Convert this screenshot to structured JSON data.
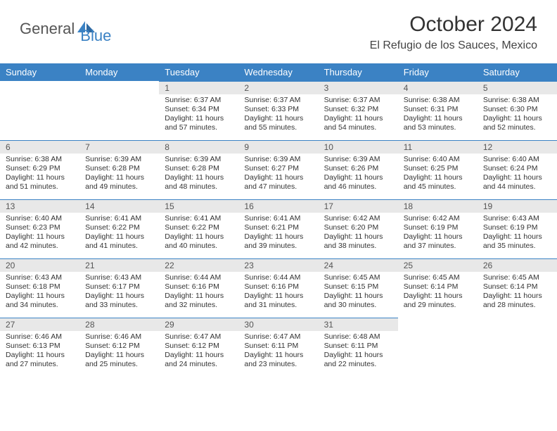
{
  "brand": {
    "general": "General",
    "blue": "Blue"
  },
  "title": "October 2024",
  "location": "El Refugio de los Sauces, Mexico",
  "colors": {
    "header_bg": "#3b82c4",
    "header_text": "#ffffff",
    "daynum_bg": "#e8e8e8",
    "daynum_border": "#3b82c4",
    "body_text": "#333333"
  },
  "weekdays": [
    "Sunday",
    "Monday",
    "Tuesday",
    "Wednesday",
    "Thursday",
    "Friday",
    "Saturday"
  ],
  "weeks": [
    [
      null,
      null,
      {
        "n": "1",
        "sr": "Sunrise: 6:37 AM",
        "ss": "Sunset: 6:34 PM",
        "d1": "Daylight: 11 hours",
        "d2": "and 57 minutes."
      },
      {
        "n": "2",
        "sr": "Sunrise: 6:37 AM",
        "ss": "Sunset: 6:33 PM",
        "d1": "Daylight: 11 hours",
        "d2": "and 55 minutes."
      },
      {
        "n": "3",
        "sr": "Sunrise: 6:37 AM",
        "ss": "Sunset: 6:32 PM",
        "d1": "Daylight: 11 hours",
        "d2": "and 54 minutes."
      },
      {
        "n": "4",
        "sr": "Sunrise: 6:38 AM",
        "ss": "Sunset: 6:31 PM",
        "d1": "Daylight: 11 hours",
        "d2": "and 53 minutes."
      },
      {
        "n": "5",
        "sr": "Sunrise: 6:38 AM",
        "ss": "Sunset: 6:30 PM",
        "d1": "Daylight: 11 hours",
        "d2": "and 52 minutes."
      }
    ],
    [
      {
        "n": "6",
        "sr": "Sunrise: 6:38 AM",
        "ss": "Sunset: 6:29 PM",
        "d1": "Daylight: 11 hours",
        "d2": "and 51 minutes."
      },
      {
        "n": "7",
        "sr": "Sunrise: 6:39 AM",
        "ss": "Sunset: 6:28 PM",
        "d1": "Daylight: 11 hours",
        "d2": "and 49 minutes."
      },
      {
        "n": "8",
        "sr": "Sunrise: 6:39 AM",
        "ss": "Sunset: 6:28 PM",
        "d1": "Daylight: 11 hours",
        "d2": "and 48 minutes."
      },
      {
        "n": "9",
        "sr": "Sunrise: 6:39 AM",
        "ss": "Sunset: 6:27 PM",
        "d1": "Daylight: 11 hours",
        "d2": "and 47 minutes."
      },
      {
        "n": "10",
        "sr": "Sunrise: 6:39 AM",
        "ss": "Sunset: 6:26 PM",
        "d1": "Daylight: 11 hours",
        "d2": "and 46 minutes."
      },
      {
        "n": "11",
        "sr": "Sunrise: 6:40 AM",
        "ss": "Sunset: 6:25 PM",
        "d1": "Daylight: 11 hours",
        "d2": "and 45 minutes."
      },
      {
        "n": "12",
        "sr": "Sunrise: 6:40 AM",
        "ss": "Sunset: 6:24 PM",
        "d1": "Daylight: 11 hours",
        "d2": "and 44 minutes."
      }
    ],
    [
      {
        "n": "13",
        "sr": "Sunrise: 6:40 AM",
        "ss": "Sunset: 6:23 PM",
        "d1": "Daylight: 11 hours",
        "d2": "and 42 minutes."
      },
      {
        "n": "14",
        "sr": "Sunrise: 6:41 AM",
        "ss": "Sunset: 6:22 PM",
        "d1": "Daylight: 11 hours",
        "d2": "and 41 minutes."
      },
      {
        "n": "15",
        "sr": "Sunrise: 6:41 AM",
        "ss": "Sunset: 6:22 PM",
        "d1": "Daylight: 11 hours",
        "d2": "and 40 minutes."
      },
      {
        "n": "16",
        "sr": "Sunrise: 6:41 AM",
        "ss": "Sunset: 6:21 PM",
        "d1": "Daylight: 11 hours",
        "d2": "and 39 minutes."
      },
      {
        "n": "17",
        "sr": "Sunrise: 6:42 AM",
        "ss": "Sunset: 6:20 PM",
        "d1": "Daylight: 11 hours",
        "d2": "and 38 minutes."
      },
      {
        "n": "18",
        "sr": "Sunrise: 6:42 AM",
        "ss": "Sunset: 6:19 PM",
        "d1": "Daylight: 11 hours",
        "d2": "and 37 minutes."
      },
      {
        "n": "19",
        "sr": "Sunrise: 6:43 AM",
        "ss": "Sunset: 6:19 PM",
        "d1": "Daylight: 11 hours",
        "d2": "and 35 minutes."
      }
    ],
    [
      {
        "n": "20",
        "sr": "Sunrise: 6:43 AM",
        "ss": "Sunset: 6:18 PM",
        "d1": "Daylight: 11 hours",
        "d2": "and 34 minutes."
      },
      {
        "n": "21",
        "sr": "Sunrise: 6:43 AM",
        "ss": "Sunset: 6:17 PM",
        "d1": "Daylight: 11 hours",
        "d2": "and 33 minutes."
      },
      {
        "n": "22",
        "sr": "Sunrise: 6:44 AM",
        "ss": "Sunset: 6:16 PM",
        "d1": "Daylight: 11 hours",
        "d2": "and 32 minutes."
      },
      {
        "n": "23",
        "sr": "Sunrise: 6:44 AM",
        "ss": "Sunset: 6:16 PM",
        "d1": "Daylight: 11 hours",
        "d2": "and 31 minutes."
      },
      {
        "n": "24",
        "sr": "Sunrise: 6:45 AM",
        "ss": "Sunset: 6:15 PM",
        "d1": "Daylight: 11 hours",
        "d2": "and 30 minutes."
      },
      {
        "n": "25",
        "sr": "Sunrise: 6:45 AM",
        "ss": "Sunset: 6:14 PM",
        "d1": "Daylight: 11 hours",
        "d2": "and 29 minutes."
      },
      {
        "n": "26",
        "sr": "Sunrise: 6:45 AM",
        "ss": "Sunset: 6:14 PM",
        "d1": "Daylight: 11 hours",
        "d2": "and 28 minutes."
      }
    ],
    [
      {
        "n": "27",
        "sr": "Sunrise: 6:46 AM",
        "ss": "Sunset: 6:13 PM",
        "d1": "Daylight: 11 hours",
        "d2": "and 27 minutes."
      },
      {
        "n": "28",
        "sr": "Sunrise: 6:46 AM",
        "ss": "Sunset: 6:12 PM",
        "d1": "Daylight: 11 hours",
        "d2": "and 25 minutes."
      },
      {
        "n": "29",
        "sr": "Sunrise: 6:47 AM",
        "ss": "Sunset: 6:12 PM",
        "d1": "Daylight: 11 hours",
        "d2": "and 24 minutes."
      },
      {
        "n": "30",
        "sr": "Sunrise: 6:47 AM",
        "ss": "Sunset: 6:11 PM",
        "d1": "Daylight: 11 hours",
        "d2": "and 23 minutes."
      },
      {
        "n": "31",
        "sr": "Sunrise: 6:48 AM",
        "ss": "Sunset: 6:11 PM",
        "d1": "Daylight: 11 hours",
        "d2": "and 22 minutes."
      },
      null,
      null
    ]
  ]
}
